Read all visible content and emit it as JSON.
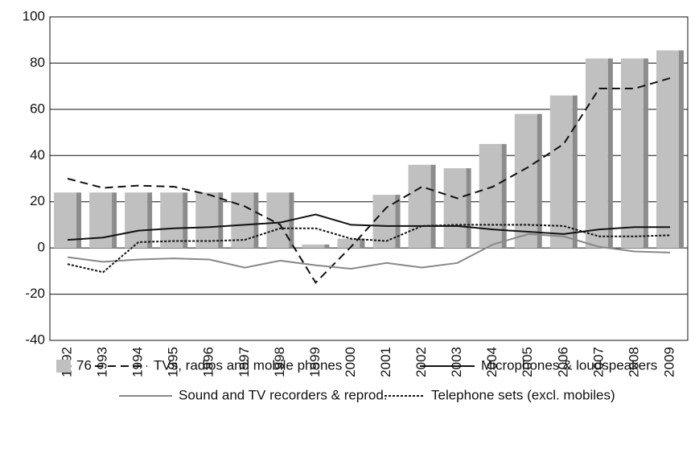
{
  "chart_data": {
    "type": "bar",
    "categories": [
      "1992",
      "1993",
      "1994",
      "1995",
      "1996",
      "1997",
      "1998",
      "1999",
      "2000",
      "2001",
      "2002",
      "2003",
      "2004",
      "2005",
      "2006",
      "2007",
      "2008",
      "2009"
    ],
    "series": [
      {
        "name": "76",
        "type": "bar",
        "color": "#c0c0c0",
        "values": [
          24,
          24,
          24,
          24,
          24,
          24,
          24,
          1.5,
          4,
          23,
          36,
          34.5,
          45,
          58,
          66,
          82,
          82,
          85.5
        ]
      },
      {
        "name": "TVs, radios and mobile phones",
        "type": "line",
        "style": "dashed",
        "color": "#111111",
        "values": [
          30,
          26,
          27,
          26.5,
          23,
          18,
          10,
          -15,
          0.5,
          17.5,
          26.5,
          21.5,
          26.5,
          35,
          45,
          69,
          69,
          73.5
        ]
      },
      {
        "name": "Microphones & loudspeakers",
        "type": "line",
        "style": "solid",
        "color": "#111111",
        "values": [
          3.5,
          4.5,
          7.5,
          8.5,
          9,
          10,
          11,
          14.5,
          10,
          9.5,
          9.5,
          9.5,
          8,
          7,
          6,
          8,
          9,
          9
        ]
      },
      {
        "name": "Sound and TV recorders & reprod.",
        "type": "line",
        "style": "solid",
        "color": "#888888",
        "values": [
          -4,
          -6,
          -5,
          -4.5,
          -5,
          -8.5,
          -5.5,
          -7.5,
          -9,
          -6.5,
          -8.5,
          -6.5,
          1.5,
          6,
          5,
          0.5,
          -1.5,
          -2
        ]
      },
      {
        "name": "Telephone sets (excl. mobiles)",
        "type": "line",
        "style": "dotted",
        "color": "#111111",
        "values": [
          -7,
          -10.5,
          2.5,
          3,
          3,
          3.5,
          8.5,
          8.5,
          4,
          3,
          9.5,
          10,
          10,
          10,
          9.5,
          5,
          5,
          5.5
        ]
      }
    ],
    "ylim": [
      -40,
      100
    ],
    "yticks": [
      -40,
      -20,
      0,
      20,
      40,
      60,
      80,
      100
    ],
    "grid": true
  }
}
